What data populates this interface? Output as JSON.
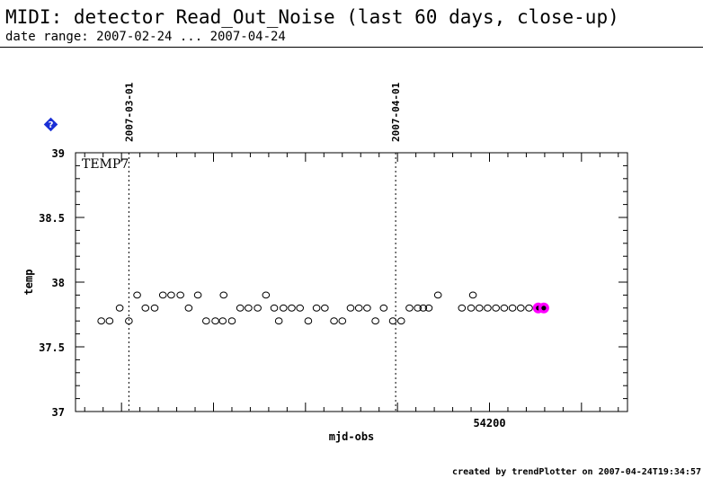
{
  "header": {
    "title": "MIDI: detector Read_Out_Noise (last 60 days, close-up)",
    "subtitle": "date range: 2007-02-24 ... 2007-04-24"
  },
  "footer": {
    "text": "created by trendPlotter on 2007-04-24T19:34:57"
  },
  "colors": {
    "background": "#ffffff",
    "axis": "#000000",
    "highlight": "#ff00ff",
    "help_icon": "#1a2fd6"
  },
  "icons": {
    "help": "help-diamond-icon"
  },
  "chart_data": {
    "type": "scatter",
    "title": "MIDI: detector Read_Out_Noise (last 60 days, close-up)",
    "subtitle": "date range: 2007-02-24 ... 2007-04-24",
    "xlabel": "mjd-obs",
    "ylabel": "temp",
    "panel_label": "TEMP7",
    "xlim": [
      54155,
      54215
    ],
    "ylim": [
      37,
      39
    ],
    "x_ticks": [
      54200
    ],
    "x_tick_labels": [
      "54200"
    ],
    "x_minor_step": 2,
    "y_ticks": [
      37,
      37.5,
      38,
      38.5,
      39
    ],
    "y_tick_labels": [
      "37",
      "37.5",
      "38",
      "38.5",
      "39"
    ],
    "y_minor_step": 0.1,
    "grid": false,
    "date_markers": [
      {
        "x": 54160.8,
        "label": "2007-03-01"
      },
      {
        "x": 54189.8,
        "label": "2007-04-01"
      }
    ],
    "series": [
      {
        "points": [
          {
            "x": 54157.8,
            "y": 37.7
          },
          {
            "x": 54158.7,
            "y": 37.7
          },
          {
            "x": 54159.8,
            "y": 37.8
          },
          {
            "x": 54160.8,
            "y": 37.7
          },
          {
            "x": 54161.7,
            "y": 37.9
          },
          {
            "x": 54162.6,
            "y": 37.8
          },
          {
            "x": 54163.6,
            "y": 37.8
          },
          {
            "x": 54164.5,
            "y": 37.9
          },
          {
            "x": 54165.4,
            "y": 37.9
          },
          {
            "x": 54166.4,
            "y": 37.9
          },
          {
            "x": 54167.3,
            "y": 37.8
          },
          {
            "x": 54168.3,
            "y": 37.9
          },
          {
            "x": 54169.2,
            "y": 37.7
          },
          {
            "x": 54170.2,
            "y": 37.7
          },
          {
            "x": 54171.0,
            "y": 37.7
          },
          {
            "x": 54171.1,
            "y": 37.9
          },
          {
            "x": 54172.0,
            "y": 37.7
          },
          {
            "x": 54172.9,
            "y": 37.8
          },
          {
            "x": 54173.8,
            "y": 37.8
          },
          {
            "x": 54174.8,
            "y": 37.8
          },
          {
            "x": 54175.7,
            "y": 37.9
          },
          {
            "x": 54176.6,
            "y": 37.8
          },
          {
            "x": 54177.1,
            "y": 37.7
          },
          {
            "x": 54177.6,
            "y": 37.8
          },
          {
            "x": 54178.5,
            "y": 37.8
          },
          {
            "x": 54179.4,
            "y": 37.8
          },
          {
            "x": 54180.3,
            "y": 37.7
          },
          {
            "x": 54181.2,
            "y": 37.8
          },
          {
            "x": 54182.1,
            "y": 37.8
          },
          {
            "x": 54183.1,
            "y": 37.7
          },
          {
            "x": 54184.0,
            "y": 37.7
          },
          {
            "x": 54184.9,
            "y": 37.8
          },
          {
            "x": 54185.8,
            "y": 37.8
          },
          {
            "x": 54186.7,
            "y": 37.8
          },
          {
            "x": 54187.6,
            "y": 37.7
          },
          {
            "x": 54188.5,
            "y": 37.8
          },
          {
            "x": 54189.5,
            "y": 37.7
          },
          {
            "x": 54190.4,
            "y": 37.7
          },
          {
            "x": 54191.3,
            "y": 37.8
          },
          {
            "x": 54192.2,
            "y": 37.8
          },
          {
            "x": 54192.8,
            "y": 37.8
          },
          {
            "x": 54193.4,
            "y": 37.8
          },
          {
            "x": 54194.4,
            "y": 37.9
          },
          {
            "x": 54197.0,
            "y": 37.8
          },
          {
            "x": 54198.0,
            "y": 37.8
          },
          {
            "x": 54198.2,
            "y": 37.9
          },
          {
            "x": 54198.9,
            "y": 37.8
          },
          {
            "x": 54199.8,
            "y": 37.8
          },
          {
            "x": 54200.7,
            "y": 37.8
          },
          {
            "x": 54201.6,
            "y": 37.8
          },
          {
            "x": 54202.5,
            "y": 37.8
          },
          {
            "x": 54203.4,
            "y": 37.8
          },
          {
            "x": 54204.3,
            "y": 37.8
          }
        ]
      },
      {
        "highlight": true,
        "points": [
          {
            "x": 54205.3,
            "y": 37.8
          },
          {
            "x": 54205.9,
            "y": 37.8
          }
        ]
      }
    ]
  }
}
